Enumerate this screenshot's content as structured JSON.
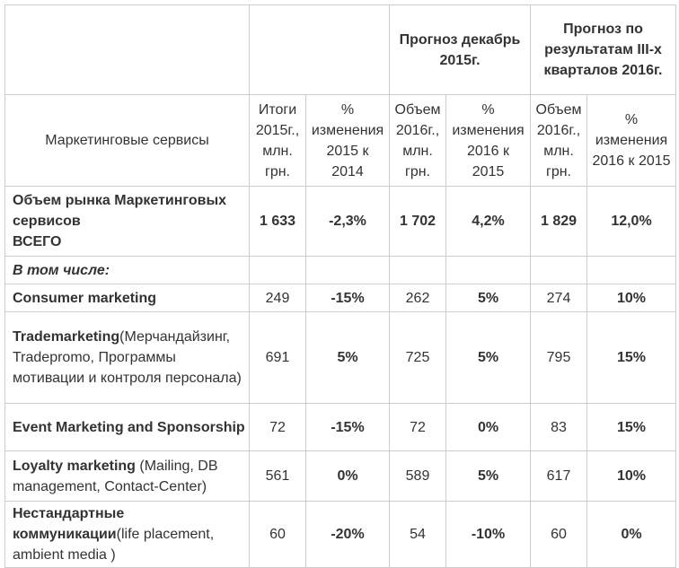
{
  "table": {
    "header_top": [
      "Прогноз декабрь 2015г.",
      "Прогноз по результатам III-х кварталов 2016г."
    ],
    "header_sub": {
      "first": "Маркетинговые сервисы",
      "cols": [
        "Итоги 2015г., млн. грн.",
        "% изменения 2015 к 2014",
        "Объем 2016г., млн. грн.",
        "% изменения 2016 к 2015",
        "Объем 2016г., млн. грн.",
        "% изменения 2016 к 2015"
      ]
    },
    "rows": [
      {
        "bold": "Объем рынка Маркетинговых сервисов\nВСЕГО",
        "cells": [
          "1 633",
          "-2,3%",
          "1 702",
          "4,2%",
          "1 829",
          "12,0%"
        ]
      },
      {
        "bold": "В том числе:",
        "cells": []
      },
      {
        "bold": "Consumer marketing",
        "cells": [
          "249",
          "-15%",
          "262",
          "5%",
          "274",
          "10%"
        ]
      },
      {
        "bold": "Trademarketing",
        "rest": "(Мерчандайзинг, Tradepromo, Программы мотивации и контроля персонала)",
        "cells": [
          "691",
          "5%",
          "725",
          "5%",
          "795",
          "15%"
        ]
      },
      {
        "bold": "Event Marketing and Sponsorship",
        "cells": [
          "72",
          "-15%",
          "72",
          "0%",
          "83",
          "15%"
        ]
      },
      {
        "bold": "Loyalty marketing",
        "rest": "  (Mailing, DB management, Contact-Center)",
        "cells": [
          "561",
          "0%",
          "589",
          "5%",
          "617",
          "10%"
        ]
      },
      {
        "bold": "Нестандартные коммуникации",
        "rest": "(life placement, ambient media )",
        "cells": [
          "60",
          "-20%",
          "54",
          "-10%",
          "60",
          "0%"
        ]
      }
    ]
  }
}
